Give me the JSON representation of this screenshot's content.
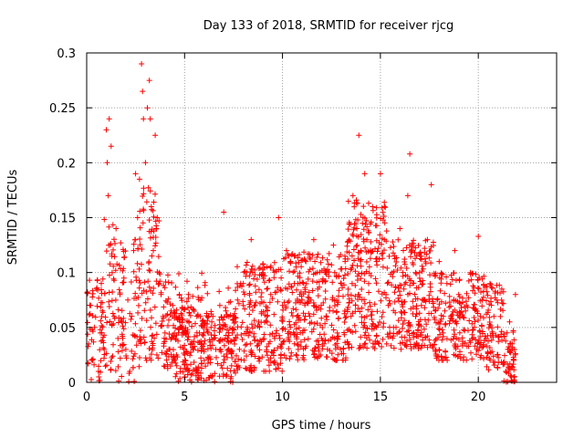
{
  "chart_data": {
    "type": "scatter",
    "title": "Day 133 of 2018, SRMTID for receiver rjcg",
    "xlabel": "GPS time / hours",
    "ylabel": "SRMTID / TECUs",
    "xlim": [
      0,
      24
    ],
    "ylim": [
      0,
      0.3
    ],
    "x_ticks": [
      0,
      5,
      10,
      15,
      20
    ],
    "y_ticks": [
      0,
      0.05,
      0.1,
      0.15,
      0.2,
      0.25,
      0.3
    ],
    "x_tick_labels": [
      "0",
      "5",
      "10",
      "15",
      "20"
    ],
    "y_tick_labels": [
      "0",
      "0.05",
      "0.1",
      "0.15",
      "0.2",
      "0.25",
      "0.3"
    ],
    "grid": true,
    "marker": "+",
    "marker_color": "#ff0000",
    "data_extent_hours": [
      0,
      21.9
    ],
    "series": [
      {
        "name": "SRMTID",
        "points": [
          [
            0.1,
            0.035
          ],
          [
            0.2,
            0.07
          ],
          [
            0.3,
            0.02
          ],
          [
            0.4,
            0.05
          ],
          [
            0.5,
            0.085
          ],
          [
            0.6,
            0.01
          ],
          [
            0.7,
            0.045
          ],
          [
            0.8,
            0.065
          ],
          [
            0.9,
            0.03
          ],
          [
            1.0,
            0.23
          ],
          [
            1.05,
            0.2
          ],
          [
            1.1,
            0.17
          ],
          [
            1.15,
            0.24
          ],
          [
            1.2,
            0.125
          ],
          [
            1.25,
            0.215
          ],
          [
            1.3,
            0.1
          ],
          [
            1.4,
            0.06
          ],
          [
            1.5,
            0.14
          ],
          [
            1.6,
            0.04
          ],
          [
            1.7,
            0.08
          ],
          [
            1.8,
            0.055
          ],
          [
            1.9,
            0.095
          ],
          [
            2.0,
            0.03
          ],
          [
            2.1,
            0.075
          ],
          [
            2.2,
            0.01
          ],
          [
            2.3,
            0.06
          ],
          [
            2.4,
            0.12
          ],
          [
            2.5,
            0.19
          ],
          [
            2.6,
            0.15
          ],
          [
            2.7,
            0.185
          ],
          [
            2.8,
            0.29
          ],
          [
            2.85,
            0.265
          ],
          [
            2.9,
            0.24
          ],
          [
            3.0,
            0.2
          ],
          [
            3.1,
            0.25
          ],
          [
            3.2,
            0.275
          ],
          [
            3.25,
            0.24
          ],
          [
            3.3,
            0.16
          ],
          [
            3.4,
            0.12
          ],
          [
            3.5,
            0.225
          ],
          [
            3.6,
            0.15
          ],
          [
            3.7,
            0.1
          ],
          [
            3.8,
            0.08
          ],
          [
            3.9,
            0.06
          ],
          [
            4.0,
            0.045
          ],
          [
            4.2,
            0.03
          ],
          [
            4.4,
            0.07
          ],
          [
            4.6,
            0.015
          ],
          [
            4.8,
            0.05
          ],
          [
            5.0,
            0.025
          ],
          [
            5.2,
            0.08
          ],
          [
            5.4,
            0.035
          ],
          [
            5.6,
            0.01
          ],
          [
            5.8,
            0.06
          ],
          [
            6.0,
            0.02
          ],
          [
            6.2,
            0.045
          ],
          [
            6.4,
            0.005
          ],
          [
            6.6,
            0.03
          ],
          [
            6.8,
            0.07
          ],
          [
            7.0,
            0.155
          ],
          [
            7.2,
            0.04
          ],
          [
            7.4,
            0.015
          ],
          [
            7.6,
            0.055
          ],
          [
            7.8,
            0.03
          ],
          [
            8.0,
            0.09
          ],
          [
            8.2,
            0.05
          ],
          [
            8.4,
            0.13
          ],
          [
            8.6,
            0.07
          ],
          [
            8.8,
            0.035
          ],
          [
            9.0,
            0.1
          ],
          [
            9.2,
            0.06
          ],
          [
            9.4,
            0.08
          ],
          [
            9.6,
            0.04
          ],
          [
            9.8,
            0.15
          ],
          [
            10.0,
            0.07
          ],
          [
            10.2,
            0.12
          ],
          [
            10.4,
            0.05
          ],
          [
            10.6,
            0.09
          ],
          [
            10.8,
            0.03
          ],
          [
            11.0,
            0.075
          ],
          [
            11.2,
            0.11
          ],
          [
            11.4,
            0.06
          ],
          [
            11.6,
            0.13
          ],
          [
            11.8,
            0.085
          ],
          [
            12.0,
            0.04
          ],
          [
            12.2,
            0.1
          ],
          [
            12.4,
            0.065
          ],
          [
            12.6,
            0.125
          ],
          [
            12.8,
            0.045
          ],
          [
            13.0,
            0.09
          ],
          [
            13.2,
            0.11
          ],
          [
            13.4,
            0.035
          ],
          [
            13.6,
            0.17
          ],
          [
            13.8,
            0.14
          ],
          [
            13.9,
            0.225
          ],
          [
            14.0,
            0.12
          ],
          [
            14.2,
            0.19
          ],
          [
            14.4,
            0.09
          ],
          [
            14.6,
            0.16
          ],
          [
            14.8,
            0.11
          ],
          [
            15.0,
            0.19
          ],
          [
            15.2,
            0.13
          ],
          [
            15.4,
            0.07
          ],
          [
            15.6,
            0.1
          ],
          [
            15.8,
            0.05
          ],
          [
            16.0,
            0.14
          ],
          [
            16.2,
            0.085
          ],
          [
            16.4,
            0.17
          ],
          [
            16.5,
            0.208
          ],
          [
            16.6,
            0.12
          ],
          [
            16.8,
            0.06
          ],
          [
            17.0,
            0.1
          ],
          [
            17.2,
            0.075
          ],
          [
            17.4,
            0.13
          ],
          [
            17.6,
            0.18
          ],
          [
            17.8,
            0.065
          ],
          [
            18.0,
            0.11
          ],
          [
            18.2,
            0.045
          ],
          [
            18.4,
            0.09
          ],
          [
            18.6,
            0.06
          ],
          [
            18.8,
            0.12
          ],
          [
            19.0,
            0.08
          ],
          [
            19.2,
            0.035
          ],
          [
            19.4,
            0.07
          ],
          [
            19.6,
            0.1
          ],
          [
            19.8,
            0.05
          ],
          [
            20.0,
            0.133
          ],
          [
            20.2,
            0.075
          ],
          [
            20.4,
            0.04
          ],
          [
            20.6,
            0.09
          ],
          [
            20.8,
            0.06
          ],
          [
            21.0,
            0.025
          ],
          [
            21.2,
            0.085
          ],
          [
            21.4,
            0.01
          ],
          [
            21.5,
            0.03
          ],
          [
            21.6,
            0.055
          ],
          [
            21.7,
            0.005
          ],
          [
            21.8,
            0.02
          ],
          [
            21.9,
            0.08
          ]
        ]
      }
    ],
    "density_bands": [
      {
        "x_range": [
          0,
          0.9
        ],
        "y_range": [
          0,
          0.095
        ],
        "count": 60
      },
      {
        "x_range": [
          0.9,
          1.5
        ],
        "y_range": [
          0.01,
          0.16
        ],
        "count": 45
      },
      {
        "x_range": [
          1.5,
          2.7
        ],
        "y_range": [
          0,
          0.13
        ],
        "count": 80
      },
      {
        "x_range": [
          2.7,
          3.7
        ],
        "y_range": [
          0.02,
          0.18
        ],
        "count": 90
      },
      {
        "x_range": [
          3.7,
          4.4
        ],
        "y_range": [
          0.01,
          0.1
        ],
        "count": 50
      },
      {
        "x_range": [
          4.4,
          7.6
        ],
        "y_range": [
          0,
          0.07
        ],
        "count": 260
      },
      {
        "x_range": [
          4.4,
          7.6
        ],
        "y_range": [
          0.03,
          0.1
        ],
        "count": 70
      },
      {
        "x_range": [
          7.6,
          10.0
        ],
        "y_range": [
          0.01,
          0.11
        ],
        "count": 220
      },
      {
        "x_range": [
          10.0,
          13.3
        ],
        "y_range": [
          0.02,
          0.12
        ],
        "count": 300
      },
      {
        "x_range": [
          13.3,
          15.4
        ],
        "y_range": [
          0.03,
          0.17
        ],
        "count": 230
      },
      {
        "x_range": [
          15.4,
          17.8
        ],
        "y_range": [
          0.03,
          0.13
        ],
        "count": 230
      },
      {
        "x_range": [
          17.8,
          20.3
        ],
        "y_range": [
          0.02,
          0.1
        ],
        "count": 210
      },
      {
        "x_range": [
          20.3,
          21.3
        ],
        "y_range": [
          0.01,
          0.09
        ],
        "count": 80
      },
      {
        "x_range": [
          21.3,
          21.9
        ],
        "y_range": [
          0,
          0.05
        ],
        "count": 50
      }
    ]
  }
}
